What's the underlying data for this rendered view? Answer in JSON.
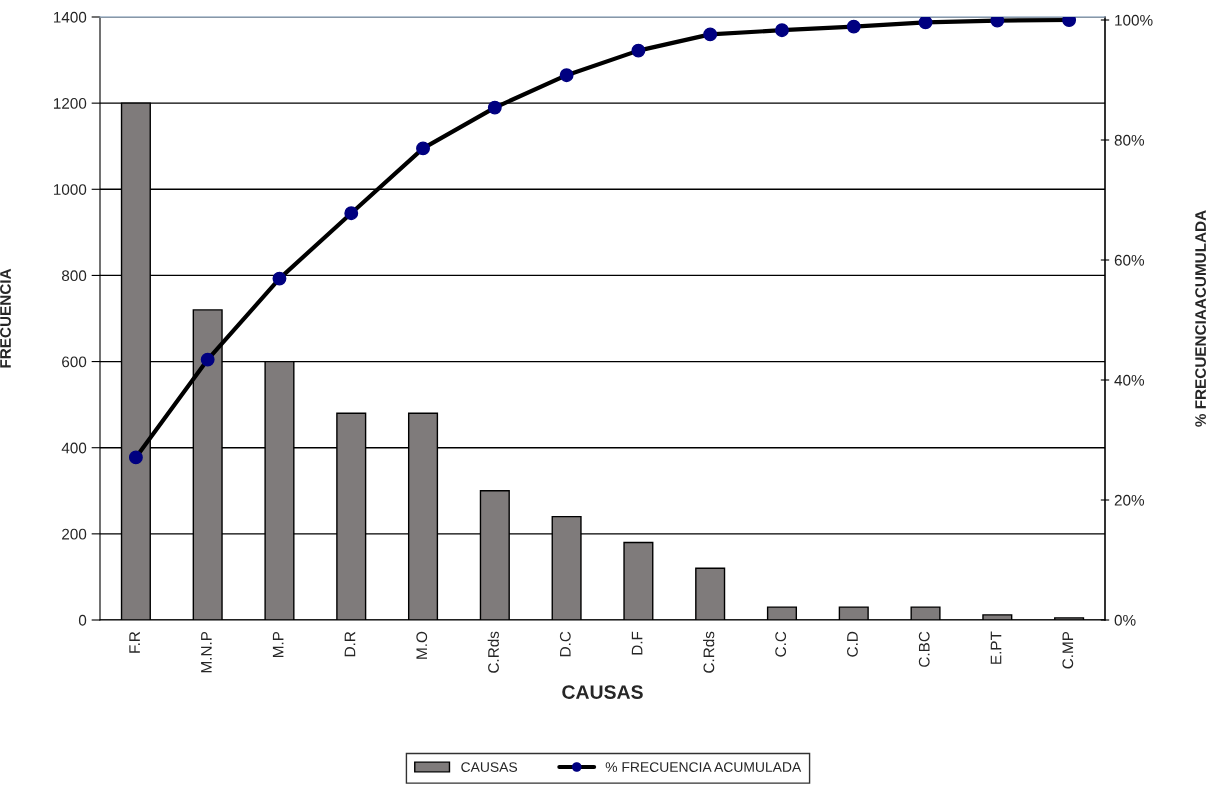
{
  "chart_data": {
    "type": "bar",
    "xlabel": "CAUSAS",
    "ylabel": "FRECUENCIA",
    "y2label": "% FRECUENCIAACUMULADA",
    "categories": [
      "F.R",
      "M.N.P",
      "M.P",
      "D.R",
      "M.O",
      "C.Rds",
      "D.C",
      "D.F",
      "C.Rds",
      "C.C",
      "C.D",
      "C.BC",
      "E.PT",
      "C.MP"
    ],
    "series": [
      {
        "name": "CAUSAS",
        "color": "#7f7b7b",
        "values": [
          1200,
          720,
          600,
          480,
          480,
          300,
          240,
          180,
          120,
          30,
          30,
          30,
          12,
          5
        ]
      },
      {
        "name": "% FRECUENCIA ACUMULADA",
        "type": "line",
        "axis": "y2",
        "color": "#000000",
        "marker": "circle",
        "line_style": "solid",
        "values": [
          27.1,
          43.4,
          56.9,
          67.8,
          78.6,
          85.4,
          90.8,
          94.9,
          97.6,
          98.3,
          98.9,
          99.6,
          99.9,
          100
        ]
      }
    ],
    "ylim": [
      0,
      1400
    ],
    "yticks": [
      0,
      200,
      400,
      600,
      800,
      1000,
      1200,
      1400
    ],
    "y2lim": [
      0,
      100.5
    ],
    "y2ticks": [
      {
        "value": 0,
        "label": "0%"
      },
      {
        "value": 20,
        "label": "20%"
      },
      {
        "value": 40,
        "label": "40%"
      },
      {
        "value": 60,
        "label": "60%"
      },
      {
        "value": 80,
        "label": "80%"
      },
      {
        "value": 100,
        "label": "100%"
      }
    ],
    "grid": "y",
    "legend": "bottom"
  }
}
